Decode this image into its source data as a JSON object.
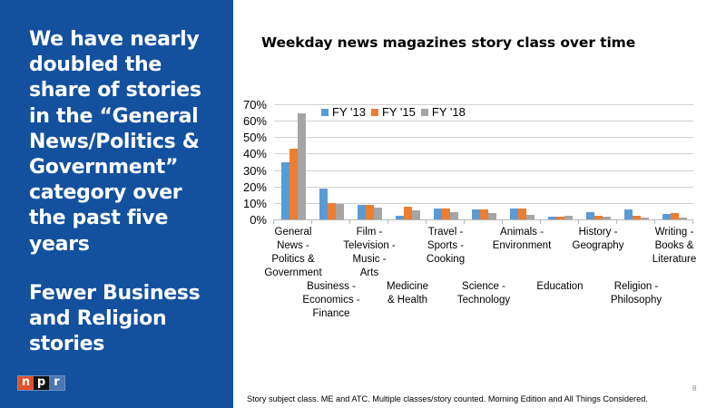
{
  "sidebar": {
    "headline": "We have nearly\ndoubled the\nshare of stories\nin the “General\nNews/Politics &\nGovernment”\ncategory over\nthe past five\nyears",
    "subhead": "Fewer Business\nand Religion\nstories",
    "logo": {
      "n": "n",
      "p": "p",
      "r": "r"
    },
    "bg_color": "#13519e"
  },
  "footnote": "Story subject class. ME and ATC. Multiple classes/story counted. Morning Edition and All Things Considered.",
  "page_number": "8",
  "chart_data": {
    "type": "bar",
    "title": "Weekday news magazines story class over time",
    "xlabel": "",
    "ylabel": "",
    "ylim": [
      0,
      70
    ],
    "y_ticks": [
      "0%",
      "10%",
      "20%",
      "30%",
      "40%",
      "50%",
      "60%",
      "70%"
    ],
    "grid": true,
    "legend_position": "top-inside",
    "categories": [
      "General News - Politics & Government",
      "Business - Economics - Finance",
      "Film - Television - Music - Arts",
      "Medicine & Health",
      "Travel - Sports - Cooking",
      "Science - Technology",
      "Animals - Environment",
      "Education",
      "History - Geography",
      "Religion - Philosophy",
      "Writing - Books & Literature"
    ],
    "category_labels_display": [
      {
        "text": "General\nNews -\nPolitics &\nGovernment",
        "row": 0
      },
      {
        "text": "Business -\nEconomics -\nFinance",
        "row": 1
      },
      {
        "text": "Film -\nTelevision -\nMusic -\nArts",
        "row": 0
      },
      {
        "text": "Medicine\n& Health",
        "row": 1
      },
      {
        "text": "Travel -\nSports -\nCooking",
        "row": 0
      },
      {
        "text": "Science -\nTechnology",
        "row": 1
      },
      {
        "text": "Animals -\nEnvironment",
        "row": 0
      },
      {
        "text": "Education",
        "row": 1
      },
      {
        "text": "History -\nGeography",
        "row": 0
      },
      {
        "text": "Religion -\nPhilosophy",
        "row": 1
      },
      {
        "text": "Writing -\nBooks &\nLiterature",
        "row": 0
      }
    ],
    "series": [
      {
        "name": "FY '13",
        "color": "#5b9bd5",
        "values": [
          34.7,
          18.9,
          8.8,
          2.4,
          6.4,
          6.2,
          6.7,
          1.9,
          4.2,
          6.0,
          3.3
        ]
      },
      {
        "name": "FY '15",
        "color": "#ed7d31",
        "values": [
          43.0,
          9.9,
          8.8,
          7.9,
          6.6,
          6.2,
          6.4,
          1.5,
          2.4,
          2.4,
          3.9
        ]
      },
      {
        "name": "FY '18",
        "color": "#a5a5a5",
        "values": [
          64.5,
          9.4,
          7.3,
          5.3,
          4.2,
          3.9,
          2.9,
          2.4,
          1.6,
          1.1,
          1.1
        ]
      }
    ]
  }
}
